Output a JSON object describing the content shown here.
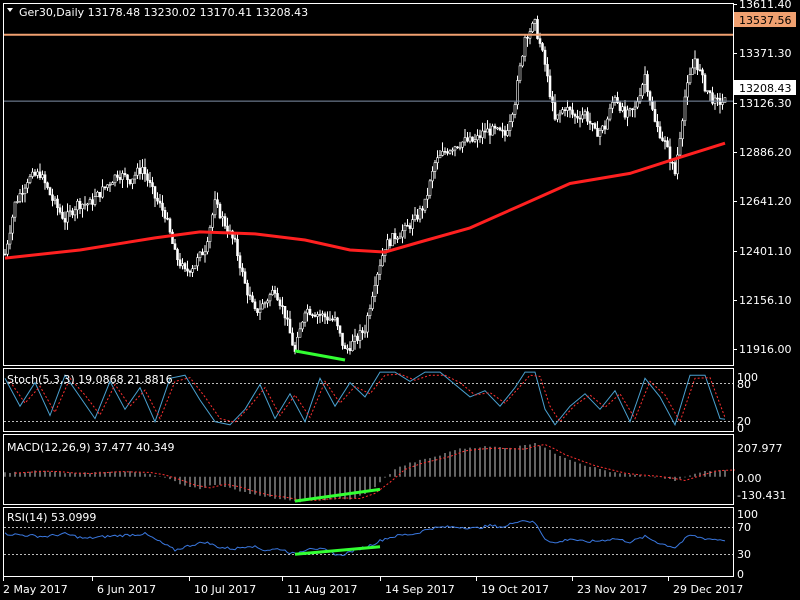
{
  "panels": {
    "price": {
      "header": "Ger30,Daily  13178.48 13230.02 13170.41 13208.43"
    },
    "stoch": {
      "header": "Stoch(5,3,3) 19.0868 21.8816"
    },
    "macd": {
      "header": "MACD(12,26,9) 37.477 40.349"
    },
    "rsi": {
      "header": "RSI(14) 53.0999"
    }
  },
  "price_axis": {
    "ticks": [
      "13611.40",
      "13371.30",
      "13126.30",
      "12886.20",
      "12641.20",
      "12401.10",
      "12156.10",
      "11916.00"
    ],
    "hline_label": "13537.56",
    "current_label": "13208.43"
  },
  "stoch_axis": {
    "ticks": [
      "100",
      "80",
      "20",
      "0"
    ]
  },
  "macd_axis": {
    "ticks": [
      "207.977",
      "0.00",
      "-130.431"
    ]
  },
  "rsi_axis": {
    "ticks": [
      "100",
      "70",
      "30",
      "0"
    ]
  },
  "time_axis": {
    "labels": [
      "2 May 2017",
      "6 Jun 2017",
      "10 Jul 2017",
      "11 Aug 2017",
      "14 Sep 2017",
      "19 Oct 2017",
      "23 Nov 2017",
      "29 Dec 2017"
    ]
  },
  "colors": {
    "background": "#000000",
    "frame": "#ffffff",
    "candle": "#ffffff",
    "moving_average": "#ff2020",
    "horizontal_line": "#f0a070",
    "current_price_line": "#8090a8",
    "divergence": "#32ff32",
    "stoch_main": "#4aa0d0",
    "stoch_signal": "#ff3030",
    "macd_histogram": "#c8c8c8",
    "macd_signal": "#ff3030",
    "rsi_line": "#3a78e0",
    "level_lines": "#bbbbbb"
  },
  "chart_data": {
    "type": "candlestick",
    "symbol": "Ger30",
    "timeframe": "Daily",
    "ohlc_last": {
      "open": 13178.48,
      "high": 13230.02,
      "low": 13170.41,
      "close": 13208.43
    },
    "ylim": [
      11900,
      13690
    ],
    "horizontal_line": 13537.56,
    "current_price": 13208.43,
    "close_path": [
      [
        0,
        12450
      ],
      [
        4,
        12700
      ],
      [
        9,
        12820
      ],
      [
        14,
        12850
      ],
      [
        19,
        12720
      ],
      [
        24,
        12620
      ],
      [
        29,
        12700
      ],
      [
        34,
        12700
      ],
      [
        40,
        12780
      ],
      [
        45,
        12850
      ],
      [
        50,
        12820
      ],
      [
        55,
        12880
      ],
      [
        60,
        12730
      ],
      [
        64,
        12650
      ],
      [
        68,
        12450
      ],
      [
        72,
        12360
      ],
      [
        76,
        12400
      ],
      [
        80,
        12480
      ],
      [
        84,
        12700
      ],
      [
        88,
        12600
      ],
      [
        92,
        12500
      ],
      [
        96,
        12300
      ],
      [
        100,
        12160
      ],
      [
        104,
        12210
      ],
      [
        108,
        12280
      ],
      [
        112,
        12150
      ],
      [
        116,
        11960
      ],
      [
        120,
        12180
      ],
      [
        124,
        12160
      ],
      [
        128,
        12140
      ],
      [
        132,
        12120
      ],
      [
        136,
        11970
      ],
      [
        140,
        12020
      ],
      [
        144,
        12080
      ],
      [
        148,
        12320
      ],
      [
        152,
        12490
      ],
      [
        156,
        12540
      ],
      [
        160,
        12570
      ],
      [
        164,
        12620
      ],
      [
        168,
        12700
      ],
      [
        172,
        12900
      ],
      [
        176,
        12960
      ],
      [
        180,
        12990
      ],
      [
        184,
        13010
      ],
      [
        188,
        13010
      ],
      [
        192,
        13060
      ],
      [
        196,
        13060
      ],
      [
        200,
        13040
      ],
      [
        204,
        13210
      ],
      [
        208,
        13530
      ],
      [
        212,
        13590
      ],
      [
        216,
        13390
      ],
      [
        220,
        13110
      ],
      [
        224,
        13180
      ],
      [
        228,
        13130
      ],
      [
        232,
        13150
      ],
      [
        236,
        13050
      ],
      [
        240,
        13080
      ],
      [
        244,
        13240
      ],
      [
        248,
        13130
      ],
      [
        252,
        13170
      ],
      [
        256,
        13340
      ],
      [
        260,
        13100
      ],
      [
        264,
        13000
      ],
      [
        268,
        12850
      ],
      [
        272,
        13230
      ],
      [
        276,
        13420
      ],
      [
        280,
        13280
      ],
      [
        284,
        13200
      ],
      [
        288,
        13208
      ]
    ],
    "moving_average": [
      [
        0,
        12430
      ],
      [
        30,
        12470
      ],
      [
        60,
        12530
      ],
      [
        78,
        12560
      ],
      [
        100,
        12550
      ],
      [
        120,
        12520
      ],
      [
        138,
        12470
      ],
      [
        152,
        12460
      ],
      [
        166,
        12510
      ],
      [
        186,
        12580
      ],
      [
        206,
        12690
      ],
      [
        226,
        12800
      ],
      [
        250,
        12850
      ],
      [
        270,
        12930
      ],
      [
        288,
        13000
      ]
    ],
    "divergence_price": [
      [
        116,
        11970
      ],
      [
        136,
        11925
      ]
    ],
    "stoch": {
      "params": "5,3,3",
      "main": 19.0868,
      "signal": 21.8816,
      "levels": [
        20,
        80
      ],
      "ylim": [
        0,
        100
      ],
      "main_path": [
        [
          0,
          85
        ],
        [
          6,
          40
        ],
        [
          12,
          78
        ],
        [
          18,
          25
        ],
        [
          24,
          90
        ],
        [
          30,
          55
        ],
        [
          36,
          20
        ],
        [
          42,
          80
        ],
        [
          48,
          35
        ],
        [
          54,
          70
        ],
        [
          60,
          15
        ],
        [
          66,
          85
        ],
        [
          72,
          90
        ],
        [
          78,
          50
        ],
        [
          84,
          15
        ],
        [
          90,
          10
        ],
        [
          96,
          35
        ],
        [
          102,
          75
        ],
        [
          108,
          20
        ],
        [
          114,
          60
        ],
        [
          120,
          15
        ],
        [
          126,
          85
        ],
        [
          132,
          40
        ],
        [
          138,
          78
        ],
        [
          144,
          55
        ],
        [
          150,
          95
        ],
        [
          156,
          95
        ],
        [
          162,
          80
        ],
        [
          168,
          95
        ],
        [
          174,
          95
        ],
        [
          180,
          75
        ],
        [
          186,
          55
        ],
        [
          192,
          65
        ],
        [
          198,
          40
        ],
        [
          204,
          70
        ],
        [
          208,
          95
        ],
        [
          212,
          95
        ],
        [
          216,
          35
        ],
        [
          220,
          10
        ],
        [
          226,
          40
        ],
        [
          232,
          60
        ],
        [
          238,
          35
        ],
        [
          244,
          65
        ],
        [
          250,
          15
        ],
        [
          256,
          85
        ],
        [
          262,
          55
        ],
        [
          268,
          10
        ],
        [
          274,
          90
        ],
        [
          280,
          90
        ],
        [
          286,
          20
        ],
        [
          288,
          19
        ]
      ],
      "signal_path": [
        [
          2,
          80
        ],
        [
          8,
          45
        ],
        [
          14,
          72
        ],
        [
          20,
          30
        ],
        [
          26,
          85
        ],
        [
          32,
          58
        ],
        [
          38,
          26
        ],
        [
          44,
          75
        ],
        [
          50,
          40
        ],
        [
          56,
          66
        ],
        [
          62,
          20
        ],
        [
          68,
          80
        ],
        [
          74,
          86
        ],
        [
          80,
          55
        ],
        [
          86,
          20
        ],
        [
          92,
          14
        ],
        [
          98,
          40
        ],
        [
          104,
          70
        ],
        [
          110,
          25
        ],
        [
          116,
          58
        ],
        [
          122,
          22
        ],
        [
          128,
          80
        ],
        [
          134,
          45
        ],
        [
          140,
          72
        ],
        [
          146,
          60
        ],
        [
          152,
          90
        ],
        [
          158,
          92
        ],
        [
          164,
          82
        ],
        [
          170,
          90
        ],
        [
          176,
          90
        ],
        [
          182,
          78
        ],
        [
          188,
          58
        ],
        [
          194,
          62
        ],
        [
          200,
          45
        ],
        [
          206,
          72
        ],
        [
          210,
          90
        ],
        [
          214,
          88
        ],
        [
          218,
          40
        ],
        [
          222,
          15
        ],
        [
          228,
          42
        ],
        [
          234,
          58
        ],
        [
          240,
          38
        ],
        [
          246,
          60
        ],
        [
          252,
          20
        ],
        [
          258,
          80
        ],
        [
          264,
          58
        ],
        [
          270,
          15
        ],
        [
          276,
          85
        ],
        [
          282,
          86
        ],
        [
          288,
          22
        ]
      ]
    },
    "macd": {
      "params": "12,26,9",
      "main": 37.477,
      "signal": 40.349,
      "ylim": [
        -140,
        215
      ],
      "histogram": [
        [
          0,
          20
        ],
        [
          6,
          25
        ],
        [
          12,
          30
        ],
        [
          18,
          28
        ],
        [
          24,
          20
        ],
        [
          30,
          18
        ],
        [
          36,
          22
        ],
        [
          42,
          28
        ],
        [
          48,
          26
        ],
        [
          54,
          24
        ],
        [
          60,
          10
        ],
        [
          66,
          -15
        ],
        [
          72,
          -45
        ],
        [
          78,
          -60
        ],
        [
          84,
          -40
        ],
        [
          90,
          -55
        ],
        [
          96,
          -80
        ],
        [
          102,
          -100
        ],
        [
          108,
          -110
        ],
        [
          114,
          -125
        ],
        [
          120,
          -128
        ],
        [
          126,
          -120
        ],
        [
          132,
          -115
        ],
        [
          138,
          -118
        ],
        [
          144,
          -90
        ],
        [
          150,
          -30
        ],
        [
          156,
          40
        ],
        [
          162,
          70
        ],
        [
          168,
          90
        ],
        [
          174,
          110
        ],
        [
          180,
          140
        ],
        [
          186,
          150
        ],
        [
          192,
          155
        ],
        [
          198,
          152
        ],
        [
          204,
          150
        ],
        [
          208,
          165
        ],
        [
          212,
          175
        ],
        [
          216,
          150
        ],
        [
          220,
          120
        ],
        [
          226,
          90
        ],
        [
          232,
          60
        ],
        [
          238,
          40
        ],
        [
          244,
          20
        ],
        [
          250,
          10
        ],
        [
          256,
          5
        ],
        [
          262,
          -5
        ],
        [
          268,
          -20
        ],
        [
          274,
          5
        ],
        [
          280,
          30
        ],
        [
          284,
          35
        ],
        [
          288,
          37
        ]
      ],
      "divergence": [
        [
          116,
          -125
        ],
        [
          150,
          -65
        ]
      ]
    },
    "rsi": {
      "period": 14,
      "value": 53.0999,
      "levels": [
        30,
        70
      ],
      "ylim": [
        0,
        100
      ],
      "path": [
        [
          0,
          62
        ],
        [
          8,
          60
        ],
        [
          16,
          58
        ],
        [
          24,
          62
        ],
        [
          32,
          55
        ],
        [
          40,
          58
        ],
        [
          48,
          60
        ],
        [
          56,
          62
        ],
        [
          62,
          50
        ],
        [
          68,
          38
        ],
        [
          74,
          45
        ],
        [
          80,
          50
        ],
        [
          86,
          42
        ],
        [
          92,
          40
        ],
        [
          98,
          45
        ],
        [
          104,
          38
        ],
        [
          110,
          40
        ],
        [
          116,
          32
        ],
        [
          122,
          42
        ],
        [
          128,
          38
        ],
        [
          134,
          30
        ],
        [
          140,
          38
        ],
        [
          146,
          45
        ],
        [
          152,
          55
        ],
        [
          158,
          60
        ],
        [
          164,
          62
        ],
        [
          170,
          70
        ],
        [
          176,
          72
        ],
        [
          182,
          72
        ],
        [
          188,
          70
        ],
        [
          194,
          74
        ],
        [
          200,
          72
        ],
        [
          204,
          80
        ],
        [
          208,
          82
        ],
        [
          212,
          78
        ],
        [
          216,
          55
        ],
        [
          220,
          48
        ],
        [
          226,
          55
        ],
        [
          232,
          50
        ],
        [
          238,
          52
        ],
        [
          244,
          55
        ],
        [
          250,
          50
        ],
        [
          256,
          58
        ],
        [
          262,
          48
        ],
        [
          268,
          42
        ],
        [
          274,
          60
        ],
        [
          280,
          55
        ],
        [
          288,
          53
        ]
      ],
      "divergence": [
        [
          116,
          32
        ],
        [
          150,
          43
        ]
      ]
    }
  }
}
